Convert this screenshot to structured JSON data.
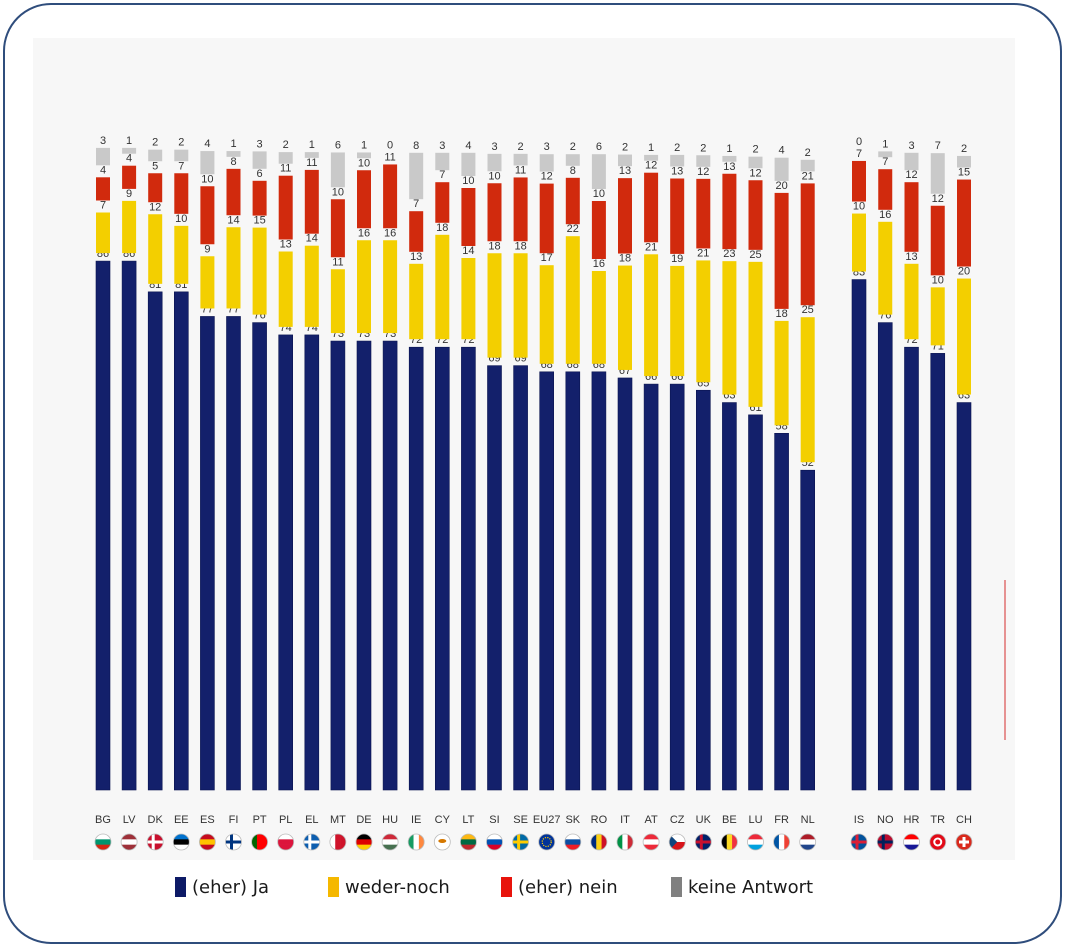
{
  "colors": {
    "ja": "#13206b",
    "weder": "#f3cf00",
    "nein": "#d12a0d",
    "keine": "#c9c9c9",
    "frame": "#2f4d7c",
    "legend_ja": "#0d1a66",
    "legend_weder": "#f5b800",
    "legend_nein": "#e8140c",
    "legend_keine": "#808080"
  },
  "legend": [
    {
      "label": "(eher) Ja",
      "color_key": "legend_ja"
    },
    {
      "label": "weder-noch",
      "color_key": "legend_weder"
    },
    {
      "label": "(eher) nein",
      "color_key": "legend_nein"
    },
    {
      "label": "keine Antwort",
      "color_key": "legend_keine"
    }
  ],
  "chart_data": {
    "type": "bar",
    "stacked": true,
    "orientation": "vertical",
    "ylim": [
      0,
      100
    ],
    "grid": false,
    "legend_placement": "bottom",
    "categories": [
      "BG",
      "LV",
      "DK",
      "EE",
      "ES",
      "FI",
      "PT",
      "PL",
      "EL",
      "MT",
      "DE",
      "HU",
      "IE",
      "CY",
      "LT",
      "SI",
      "SE",
      "EU27",
      "SK",
      "RO",
      "IT",
      "AT",
      "CZ",
      "UK",
      "BE",
      "LU",
      "FR",
      "NL",
      "IS",
      "NO",
      "HR",
      "TR",
      "CH"
    ],
    "flags": [
      "flag-bulgaria-icon",
      "flag-latvia-icon",
      "flag-denmark-icon",
      "flag-estonia-icon",
      "flag-spain-icon",
      "flag-finland-icon",
      "flag-portugal-icon",
      "flag-poland-icon",
      "flag-greece-icon",
      "flag-malta-icon",
      "flag-germany-icon",
      "flag-hungary-icon",
      "flag-ireland-icon",
      "flag-cyprus-icon",
      "flag-lithuania-icon",
      "flag-slovenia-icon",
      "flag-sweden-icon",
      "flag-eu-icon",
      "flag-slovakia-icon",
      "flag-romania-icon",
      "flag-italy-icon",
      "flag-austria-icon",
      "flag-czechia-icon",
      "flag-uk-icon",
      "flag-belgium-icon",
      "flag-luxembourg-icon",
      "flag-france-icon",
      "flag-netherlands-icon",
      "flag-iceland-icon",
      "flag-norway-icon",
      "flag-croatia-icon",
      "flag-turkey-icon",
      "flag-switzerland-icon"
    ],
    "series": [
      {
        "name": "(eher) Ja",
        "color_key": "ja",
        "values": [
          86,
          86,
          81,
          81,
          77,
          77,
          76,
          74,
          74,
          73,
          73,
          73,
          72,
          72,
          72,
          69,
          69,
          68,
          68,
          68,
          67,
          66,
          66,
          65,
          63,
          61,
          58,
          52,
          83,
          76,
          72,
          71,
          63
        ]
      },
      {
        "name": "weder-noch",
        "color_key": "weder",
        "values": [
          7,
          9,
          12,
          10,
          9,
          14,
          15,
          13,
          14,
          11,
          16,
          16,
          13,
          18,
          14,
          18,
          18,
          17,
          22,
          16,
          18,
          21,
          19,
          21,
          23,
          25,
          18,
          25,
          10,
          16,
          13,
          10,
          20
        ]
      },
      {
        "name": "(eher) nein",
        "color_key": "nein",
        "values": [
          4,
          4,
          5,
          7,
          10,
          8,
          6,
          11,
          11,
          10,
          10,
          11,
          7,
          7,
          10,
          10,
          11,
          12,
          8,
          10,
          13,
          12,
          13,
          12,
          13,
          12,
          20,
          21,
          7,
          7,
          12,
          12,
          15
        ]
      },
      {
        "name": "keine Antwort",
        "color_key": "keine",
        "values": [
          3,
          1,
          2,
          2,
          4,
          1,
          3,
          2,
          1,
          6,
          1,
          0,
          8,
          3,
          4,
          3,
          2,
          3,
          2,
          6,
          2,
          1,
          2,
          2,
          1,
          2,
          4,
          2,
          0,
          1,
          3,
          7,
          2
        ]
      }
    ]
  }
}
